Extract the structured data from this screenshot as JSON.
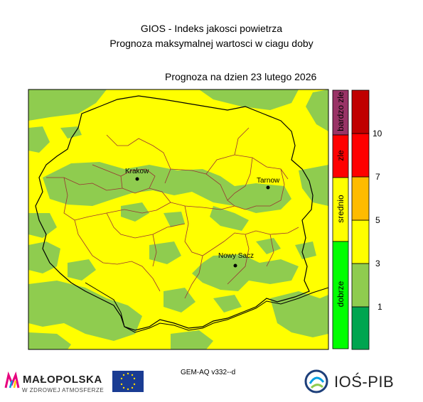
{
  "title": "GIOS - Indeks jakosci powietrza",
  "subtitle": "Prognoza maksymalnej wartosci w ciagu doby",
  "forecast_date": "Prognoza na dzien  23 lutego 2026",
  "cities": {
    "krakow": "Krakow",
    "tarnow": "Tarnow",
    "nowy_sacz": "Nowy Sacz"
  },
  "legend": {
    "categories": [
      {
        "label": "dobrze",
        "color": "#00ff00"
      },
      {
        "label": "srednio",
        "color": "#ffff00"
      },
      {
        "label": "zle",
        "color": "#ff0000"
      },
      {
        "label": "bardzo zle",
        "color": "#993366"
      }
    ],
    "scale": [
      {
        "from": 0,
        "to": 1,
        "color": "#00a550"
      },
      {
        "from": 1,
        "to": 3,
        "color": "#8fcc4f"
      },
      {
        "from": 3,
        "to": 5,
        "color": "#ffff00"
      },
      {
        "from": 5,
        "to": 7,
        "color": "#ffbb00"
      },
      {
        "from": 7,
        "to": 10,
        "color": "#ff0000"
      },
      {
        "from": 10,
        "to": 12,
        "color": "#c00000"
      }
    ],
    "ticks": [
      "1",
      "3",
      "5",
      "7",
      "10"
    ]
  },
  "model_label": "GEM-AQ v332--d",
  "logos": {
    "malopolska_name": "MAŁOPOLSKA",
    "malopolska_sub": "W ZDROWEJ ATMOSFERZE",
    "eu": "LIFE",
    "ios_pib": "IOŚ-PIB"
  },
  "colors": {
    "map_background": "#ffff00",
    "low_index": "#8fcc4f",
    "border_region": "#000000",
    "border_county": "#993333"
  }
}
